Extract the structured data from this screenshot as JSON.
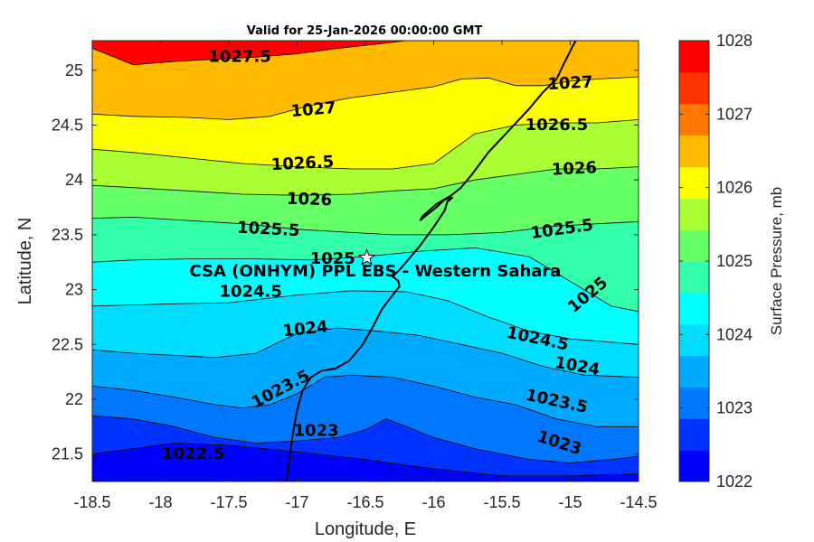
{
  "chart_data": {
    "type": "contour",
    "title": "Valid for 25-Jan-2026 00:00:00 GMT",
    "xlabel": "Longitude, E",
    "ylabel": "Latitude, N",
    "xlim": [
      -18.5,
      -14.5
    ],
    "ylim": [
      21.25,
      25.27
    ],
    "x_ticks": [
      "-18.5",
      "-18",
      "-17.5",
      "-17",
      "-16.5",
      "-16",
      "-15.5",
      "-15",
      "-14.5"
    ],
    "y_ticks": [
      "21.5",
      "22",
      "22.5",
      "23",
      "23.5",
      "24",
      "24.5",
      "25"
    ],
    "levels": [
      1022,
      1022.5,
      1023,
      1023.5,
      1024,
      1024.5,
      1025,
      1025.5,
      1026,
      1026.5,
      1027,
      1027.5,
      1028
    ],
    "band_colors": [
      "#0000ff",
      "#0033ff",
      "#0077ff",
      "#00aaff",
      "#00ddff",
      "#00ffff",
      "#33ffaa",
      "#66ff66",
      "#aaff33",
      "#ffff00",
      "#ffbb00",
      "#ff7700",
      "#ff3300",
      "#ff0000"
    ],
    "contours": [
      {
        "level": 1022.5,
        "points": [
          [
            -18.5,
            21.5
          ],
          [
            -18.2,
            21.55
          ],
          [
            -17.9,
            21.6
          ],
          [
            -17.5,
            21.58
          ],
          [
            -17.0,
            21.52
          ],
          [
            -16.5,
            21.45
          ],
          [
            -16.1,
            21.38
          ],
          [
            -15.8,
            21.34
          ],
          [
            -15.5,
            21.3
          ],
          [
            -15.0,
            21.3
          ],
          [
            -14.5,
            21.32
          ]
        ]
      },
      {
        "level": 1023,
        "points": [
          [
            -18.5,
            21.85
          ],
          [
            -18.2,
            21.82
          ],
          [
            -17.9,
            21.75
          ],
          [
            -17.6,
            21.65
          ],
          [
            -17.3,
            21.6
          ],
          [
            -17.0,
            21.62
          ],
          [
            -16.7,
            21.65
          ],
          [
            -16.5,
            21.72
          ],
          [
            -16.35,
            21.82
          ],
          [
            -16.2,
            21.75
          ],
          [
            -16.0,
            21.65
          ],
          [
            -15.7,
            21.55
          ],
          [
            -15.3,
            21.45
          ],
          [
            -15.0,
            21.42
          ],
          [
            -14.7,
            21.45
          ],
          [
            -14.5,
            21.48
          ]
        ]
      },
      {
        "level": 1023.5,
        "points": [
          [
            -18.5,
            22.12
          ],
          [
            -18.2,
            22.08
          ],
          [
            -17.9,
            22.02
          ],
          [
            -17.6,
            21.95
          ],
          [
            -17.4,
            21.92
          ],
          [
            -17.2,
            21.95
          ],
          [
            -17.0,
            22.05
          ],
          [
            -16.8,
            22.2
          ],
          [
            -16.6,
            22.22
          ],
          [
            -16.3,
            22.2
          ],
          [
            -16.0,
            22.12
          ],
          [
            -15.7,
            22.02
          ],
          [
            -15.4,
            21.95
          ],
          [
            -15.1,
            21.82
          ],
          [
            -14.8,
            21.75
          ],
          [
            -14.5,
            21.75
          ]
        ]
      },
      {
        "level": 1024,
        "points": [
          [
            -18.5,
            22.45
          ],
          [
            -18.2,
            22.42
          ],
          [
            -17.9,
            22.4
          ],
          [
            -17.6,
            22.38
          ],
          [
            -17.3,
            22.42
          ],
          [
            -17.0,
            22.6
          ],
          [
            -16.7,
            22.65
          ],
          [
            -16.4,
            22.62
          ],
          [
            -16.1,
            22.58
          ],
          [
            -15.8,
            22.5
          ],
          [
            -15.5,
            22.42
          ],
          [
            -15.2,
            22.3
          ],
          [
            -14.9,
            22.22
          ],
          [
            -14.5,
            22.2
          ]
        ]
      },
      {
        "level": 1024.5,
        "points": [
          [
            -18.5,
            22.85
          ],
          [
            -18.2,
            22.86
          ],
          [
            -17.9,
            22.87
          ],
          [
            -17.5,
            22.88
          ],
          [
            -17.0,
            22.95
          ],
          [
            -16.6,
            22.99
          ],
          [
            -16.2,
            22.98
          ],
          [
            -15.9,
            22.9
          ],
          [
            -15.6,
            22.75
          ],
          [
            -15.3,
            22.62
          ],
          [
            -15.0,
            22.55
          ],
          [
            -14.7,
            22.52
          ],
          [
            -14.5,
            22.5
          ]
        ]
      },
      {
        "level": 1025,
        "points": [
          [
            -18.5,
            23.25
          ],
          [
            -18.2,
            23.27
          ],
          [
            -17.8,
            23.28
          ],
          [
            -17.3,
            23.28
          ],
          [
            -16.9,
            23.27
          ],
          [
            -16.5,
            23.3
          ],
          [
            -16.1,
            23.35
          ],
          [
            -15.7,
            23.38
          ],
          [
            -15.3,
            23.3
          ],
          [
            -15.1,
            23.15
          ],
          [
            -14.9,
            23.0
          ],
          [
            -14.7,
            22.85
          ],
          [
            -14.5,
            22.8
          ]
        ]
      },
      {
        "level": 1025.5,
        "points": [
          [
            -18.5,
            23.65
          ],
          [
            -18.2,
            23.66
          ],
          [
            -17.8,
            23.63
          ],
          [
            -17.4,
            23.6
          ],
          [
            -17.0,
            23.55
          ],
          [
            -16.6,
            23.52
          ],
          [
            -16.3,
            23.5
          ],
          [
            -15.9,
            23.5
          ],
          [
            -15.5,
            23.52
          ],
          [
            -15.1,
            23.58
          ],
          [
            -14.8,
            23.6
          ],
          [
            -14.5,
            23.62
          ]
        ]
      },
      {
        "level": 1026,
        "points": [
          [
            -18.5,
            23.95
          ],
          [
            -18.2,
            23.93
          ],
          [
            -17.8,
            23.9
          ],
          [
            -17.4,
            23.87
          ],
          [
            -17.0,
            23.86
          ],
          [
            -16.6,
            23.87
          ],
          [
            -16.3,
            23.9
          ],
          [
            -16.0,
            23.92
          ],
          [
            -15.7,
            24.0
          ],
          [
            -15.4,
            24.05
          ],
          [
            -15.1,
            24.1
          ],
          [
            -14.8,
            24.1
          ],
          [
            -14.5,
            24.12
          ]
        ]
      },
      {
        "level": 1026.5,
        "points": [
          [
            -18.5,
            24.28
          ],
          [
            -18.2,
            24.25
          ],
          [
            -17.8,
            24.2
          ],
          [
            -17.4,
            24.15
          ],
          [
            -17.0,
            24.12
          ],
          [
            -16.6,
            24.1
          ],
          [
            -16.3,
            24.1
          ],
          [
            -16.0,
            24.15
          ],
          [
            -15.7,
            24.42
          ],
          [
            -15.4,
            24.5
          ],
          [
            -15.1,
            24.52
          ],
          [
            -14.8,
            24.52
          ],
          [
            -14.5,
            24.55
          ]
        ]
      },
      {
        "level": 1027,
        "points": [
          [
            -18.5,
            24.6
          ],
          [
            -18.2,
            24.58
          ],
          [
            -17.8,
            24.57
          ],
          [
            -17.5,
            24.55
          ],
          [
            -17.2,
            24.58
          ],
          [
            -16.9,
            24.68
          ],
          [
            -16.6,
            24.75
          ],
          [
            -16.3,
            24.8
          ],
          [
            -16.0,
            24.85
          ],
          [
            -15.8,
            24.92
          ],
          [
            -15.6,
            24.93
          ],
          [
            -15.4,
            24.86
          ],
          [
            -15.2,
            24.86
          ],
          [
            -15.0,
            24.9
          ],
          [
            -14.8,
            24.92
          ],
          [
            -14.5,
            24.94
          ]
        ]
      },
      {
        "level": 1027.5,
        "points": [
          [
            -18.5,
            25.2
          ],
          [
            -18.2,
            25.05
          ],
          [
            -17.9,
            25.08
          ],
          [
            -17.6,
            25.1
          ],
          [
            -17.3,
            25.12
          ],
          [
            -17.0,
            25.15
          ],
          [
            -16.7,
            25.2
          ],
          [
            -16.4,
            25.24
          ],
          [
            -16.2,
            25.27
          ]
        ]
      }
    ],
    "contour_labels": [
      {
        "text": "1027.5",
        "x": -17.42,
        "y": 25.12,
        "angle": 0
      },
      {
        "text": "1027",
        "x": -16.88,
        "y": 24.64,
        "angle": -5
      },
      {
        "text": "1027",
        "x": -15.0,
        "y": 24.88,
        "angle": -3
      },
      {
        "text": "1026.5",
        "x": -15.1,
        "y": 24.5,
        "angle": 0
      },
      {
        "text": "1026.5",
        "x": -16.96,
        "y": 24.15,
        "angle": -3
      },
      {
        "text": "1026",
        "x": -14.97,
        "y": 24.1,
        "angle": -3
      },
      {
        "text": "1026",
        "x": -16.91,
        "y": 23.82,
        "angle": 2
      },
      {
        "text": "1025.5",
        "x": -17.21,
        "y": 23.55,
        "angle": 3
      },
      {
        "text": "1025.5",
        "x": -15.06,
        "y": 23.55,
        "angle": -8
      },
      {
        "text": "1025",
        "x": -16.74,
        "y": 23.28,
        "angle": 0
      },
      {
        "text": "1025",
        "x": -14.87,
        "y": 22.95,
        "angle": -40
      },
      {
        "text": "1024.5",
        "x": -17.34,
        "y": 22.98,
        "angle": 0
      },
      {
        "text": "1024.5",
        "x": -15.24,
        "y": 22.55,
        "angle": 12
      },
      {
        "text": "1024",
        "x": -16.94,
        "y": 22.64,
        "angle": -6
      },
      {
        "text": "1024",
        "x": -14.95,
        "y": 22.3,
        "angle": 10
      },
      {
        "text": "1023.5",
        "x": -17.12,
        "y": 22.09,
        "angle": -28
      },
      {
        "text": "1023.5",
        "x": -15.1,
        "y": 21.98,
        "angle": 12
      },
      {
        "text": "1023",
        "x": -16.86,
        "y": 21.71,
        "angle": 0
      },
      {
        "text": "1023",
        "x": -15.08,
        "y": 21.6,
        "angle": 18
      },
      {
        "text": "1022.5",
        "x": -17.76,
        "y": 21.5,
        "angle": 0
      }
    ],
    "coastline": [
      [
        -17.08,
        21.25
      ],
      [
        -17.05,
        21.5
      ],
      [
        -17.03,
        21.7
      ],
      [
        -17.0,
        21.9
      ],
      [
        -16.96,
        22.08
      ],
      [
        -16.9,
        22.2
      ],
      [
        -16.82,
        22.26
      ],
      [
        -16.72,
        22.28
      ],
      [
        -16.62,
        22.35
      ],
      [
        -16.52,
        22.5
      ],
      [
        -16.45,
        22.65
      ],
      [
        -16.38,
        22.82
      ],
      [
        -16.3,
        22.95
      ],
      [
        -16.25,
        23.03
      ],
      [
        -16.26,
        23.08
      ],
      [
        -16.3,
        23.12
      ],
      [
        -16.25,
        23.18
      ],
      [
        -16.1,
        23.4
      ],
      [
        -16.0,
        23.57
      ],
      [
        -15.92,
        23.72
      ],
      [
        -15.9,
        23.8
      ],
      [
        -15.86,
        23.84
      ],
      [
        -15.92,
        23.82
      ],
      [
        -15.98,
        23.75
      ],
      [
        -16.05,
        23.68
      ],
      [
        -16.1,
        23.63
      ],
      [
        -16.08,
        23.67
      ],
      [
        -15.98,
        23.78
      ],
      [
        -15.87,
        23.86
      ],
      [
        -15.8,
        23.93
      ],
      [
        -15.72,
        24.05
      ],
      [
        -15.6,
        24.25
      ],
      [
        -15.45,
        24.45
      ],
      [
        -15.3,
        24.65
      ],
      [
        -15.2,
        24.8
      ],
      [
        -15.1,
        24.92
      ],
      [
        -15.05,
        25.05
      ],
      [
        -14.99,
        25.2
      ],
      [
        -14.96,
        25.27
      ]
    ],
    "station": {
      "name": "CSA (ONHYM) PPL EBS  - Western Sahara",
      "lon": -16.49,
      "lat": 23.29,
      "marker": "white-star"
    },
    "colorbar": {
      "label": "Surface Pressure, mb",
      "min": 1022,
      "max": 1028,
      "bands": [
        "#0000ff",
        "#0033ff",
        "#0077ff",
        "#00aaff",
        "#00ddff",
        "#00ffff",
        "#33ffaa",
        "#66ff66",
        "#aaff33",
        "#ffff00",
        "#ffbb00",
        "#ff7700",
        "#ff3300",
        "#ff0000"
      ],
      "ticks": [
        "1022",
        "1023",
        "1024",
        "1025",
        "1026",
        "1027",
        "1028"
      ]
    }
  }
}
